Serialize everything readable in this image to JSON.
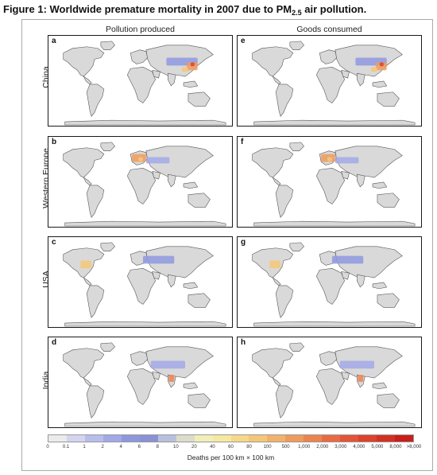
{
  "figure": {
    "title_prefix": "Figure 1: Worldwide premature mortality in 2007 due to PM",
    "title_sub": "2.5",
    "title_suffix": " air pollution."
  },
  "columns": [
    "Pollution produced",
    "Goods consumed"
  ],
  "rows": [
    {
      "label": "China",
      "letters": [
        "a",
        "e"
      ],
      "hotspots": [
        [
          "china-east",
          "china-east"
        ],
        [
          "china-east",
          "china-east"
        ]
      ]
    },
    {
      "label": "Western Europe",
      "letters": [
        "b",
        "f"
      ]
    },
    {
      "label": "USA",
      "letters": [
        "c",
        "g"
      ]
    },
    {
      "label": "India",
      "letters": [
        "d",
        "h"
      ]
    }
  ],
  "legend": {
    "caption": "Deaths per 100 km × 100 km",
    "ticks": [
      "0",
      "0.1",
      "1",
      "2",
      "4",
      "6",
      "8",
      "10",
      "20",
      "40",
      "60",
      "80",
      "100",
      "500",
      "1,000",
      "2,000",
      "3,000",
      "4,000",
      "5,000",
      "8,000",
      ">8,000"
    ],
    "colors": [
      "#ebebeb",
      "#d4d4f0",
      "#b9bdeb",
      "#a2a9e6",
      "#8e98df",
      "#8a91d6",
      "#b9c0dd",
      "#dcdccb",
      "#f1efb8",
      "#f5e8a1",
      "#f6d88a",
      "#f4c778",
      "#f2b26b",
      "#f09b5d",
      "#ed834f",
      "#e96a42",
      "#e35536",
      "#dc422c",
      "#d23122",
      "#c81f1a"
    ]
  }
}
